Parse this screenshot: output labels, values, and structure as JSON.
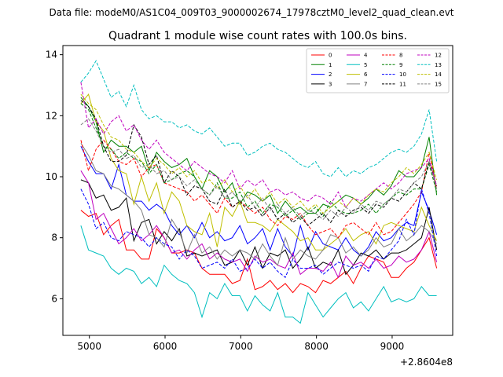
{
  "header": {
    "data_file": "Data file: modeM0/AS1C04_009T03_9000002674_17978cztM0_level2_quad_clean.evt"
  },
  "chart_data": {
    "type": "line",
    "title": "Quadrant 1 module wise count rates with 100.0s bins.",
    "xlabel": "",
    "ylabel": "",
    "x_offset_label": "+2.8604e8",
    "xlim": [
      4650,
      9800
    ],
    "ylim": [
      4.8,
      14.3
    ],
    "xticks": [
      5000,
      6000,
      7000,
      8000,
      9000
    ],
    "yticks": [
      6,
      8,
      10,
      12,
      14
    ],
    "legend": {
      "position": "top-right",
      "columns": 4
    },
    "x": [
      4888,
      4988,
      5088,
      5188,
      5288,
      5388,
      5488,
      5588,
      5688,
      5788,
      5888,
      5988,
      6088,
      6188,
      6288,
      6388,
      6488,
      6588,
      6688,
      6788,
      6888,
      6988,
      7088,
      7188,
      7288,
      7388,
      7488,
      7588,
      7688,
      7788,
      7888,
      7988,
      8088,
      8188,
      8288,
      8388,
      8488,
      8588,
      8688,
      8788,
      8888,
      8988,
      9088,
      9188,
      9288,
      9388,
      9488,
      9588
    ],
    "series": [
      {
        "name": "0",
        "color": "#ff0000",
        "style": "solid",
        "values": [
          8.9,
          8.7,
          8.8,
          8.1,
          8.4,
          8.6,
          7.6,
          7.6,
          7.3,
          7.3,
          8.3,
          8.0,
          7.5,
          7.5,
          7.6,
          7.5,
          7.0,
          6.8,
          6.8,
          6.8,
          6.5,
          6.6,
          7.3,
          6.3,
          6.4,
          6.6,
          6.3,
          6.5,
          6.2,
          6.5,
          6.4,
          6.2,
          6.6,
          6.5,
          6.7,
          6.9,
          6.5,
          7.0,
          7.4,
          7.3,
          7.2,
          6.7,
          6.7,
          7.0,
          7.2,
          7.6,
          8.0,
          7.0
        ]
      },
      {
        "name": "1",
        "color": "#008000",
        "style": "solid",
        "values": [
          12.6,
          12.3,
          11.8,
          10.8,
          11.2,
          11.0,
          11.0,
          10.8,
          11.0,
          10.2,
          10.8,
          10.5,
          10.3,
          10.4,
          10.6,
          10.0,
          9.6,
          10.2,
          10.0,
          9.5,
          9.8,
          9.1,
          9.5,
          9.4,
          9.2,
          9.4,
          8.8,
          9.2,
          8.9,
          9.0,
          8.8,
          8.8,
          9.1,
          9.0,
          9.2,
          9.4,
          9.3,
          9.1,
          9.3,
          9.6,
          9.4,
          9.7,
          10.2,
          10.0,
          10.0,
          10.3,
          11.3,
          9.4
        ]
      },
      {
        "name": "2",
        "color": "#0000ff",
        "style": "solid",
        "values": [
          11.0,
          10.5,
          10.1,
          10.1,
          9.6,
          10.4,
          9.4,
          9.2,
          9.2,
          8.9,
          9.1,
          8.9,
          8.4,
          8.1,
          8.4,
          8.0,
          8.5,
          8.0,
          8.2,
          7.9,
          8.0,
          8.4,
          7.8,
          8.0,
          8.3,
          7.6,
          8.3,
          7.7,
          7.4,
          8.4,
          7.6,
          8.2,
          7.8,
          7.7,
          7.6,
          8.0,
          7.6,
          7.4,
          7.7,
          8.2,
          7.9,
          8.0,
          8.3,
          8.5,
          8.4,
          9.5,
          8.9,
          8.1
        ]
      },
      {
        "name": "3",
        "color": "#000000",
        "style": "solid",
        "values": [
          9.9,
          9.8,
          9.3,
          9.4,
          8.9,
          9.0,
          9.3,
          7.9,
          8.5,
          8.6,
          7.8,
          8.2,
          7.9,
          8.3,
          7.4,
          7.5,
          7.4,
          7.5,
          7.6,
          7.1,
          7.2,
          7.6,
          7.1,
          7.7,
          7.0,
          7.5,
          7.4,
          7.6,
          7.0,
          7.3,
          7.7,
          7.0,
          7.2,
          7.1,
          7.6,
          6.8,
          7.1,
          7.5,
          7.4,
          7.6,
          7.3,
          7.5,
          7.5,
          7.6,
          7.8,
          8.0,
          9.0,
          7.6
        ]
      },
      {
        "name": "4",
        "color": "#bf00bf",
        "style": "solid",
        "values": [
          10.2,
          9.8,
          8.6,
          8.8,
          8.3,
          7.8,
          8.0,
          8.3,
          7.9,
          8.1,
          8.4,
          8.0,
          7.5,
          7.6,
          7.3,
          7.6,
          7.8,
          7.3,
          7.5,
          7.3,
          7.2,
          7.3,
          6.9,
          7.4,
          7.2,
          7.3,
          7.1,
          7.0,
          7.5,
          6.8,
          7.0,
          7.0,
          6.9,
          7.2,
          6.7,
          7.4,
          7.1,
          7.2,
          7.0,
          7.3,
          7.0,
          7.1,
          7.4,
          7.2,
          7.3,
          7.6,
          8.2,
          7.2
        ]
      },
      {
        "name": "5",
        "color": "#00bfbf",
        "style": "solid",
        "values": [
          8.4,
          7.6,
          7.5,
          7.4,
          7.0,
          6.8,
          7.0,
          6.9,
          6.5,
          6.7,
          6.4,
          7.1,
          6.8,
          6.6,
          6.5,
          6.2,
          5.4,
          6.2,
          6.0,
          6.5,
          6.1,
          6.1,
          5.6,
          6.1,
          5.8,
          5.6,
          6.2,
          5.4,
          5.4,
          5.2,
          6.2,
          5.8,
          5.4,
          5.7,
          6.0,
          6.2,
          5.7,
          5.9,
          5.6,
          6.0,
          6.4,
          5.9,
          6.0,
          5.9,
          6.0,
          6.4,
          6.1,
          6.1
        ]
      },
      {
        "name": "6",
        "color": "#bfbf00",
        "style": "solid",
        "values": [
          12.4,
          12.7,
          11.8,
          11.5,
          10.6,
          10.2,
          10.1,
          9.1,
          10.0,
          9.2,
          9.8,
          8.8,
          9.5,
          9.2,
          8.4,
          8.2,
          8.1,
          8.8,
          7.7,
          9.0,
          8.7,
          9.2,
          8.5,
          8.5,
          8.4,
          8.2,
          8.6,
          8.4,
          8.2,
          7.9,
          8.0,
          7.6,
          7.6,
          7.8,
          8.0,
          8.3,
          7.9,
          8.1,
          8.2,
          7.8,
          8.4,
          8.5,
          8.4,
          8.3,
          8.2,
          9.0,
          8.4,
          7.9
        ]
      },
      {
        "name": "7",
        "color": "#808080",
        "style": "solid",
        "values": [
          11.1,
          10.7,
          10.2,
          10.1,
          9.7,
          9.6,
          9.4,
          9.2,
          8.9,
          8.1,
          8.0,
          7.7,
          8.6,
          8.2,
          7.5,
          8.1,
          7.5,
          7.7,
          7.3,
          7.6,
          7.4,
          7.6,
          7.5,
          7.3,
          7.8,
          7.4,
          7.1,
          8.0,
          7.3,
          7.6,
          7.4,
          7.3,
          7.6,
          8.1,
          8.0,
          7.5,
          7.7,
          7.4,
          7.6,
          8.0,
          7.7,
          7.8,
          8.3,
          7.9,
          8.1,
          8.4,
          8.2,
          7.8
        ]
      },
      {
        "name": "8",
        "color": "#ff0000",
        "style": "dashed",
        "values": [
          11.2,
          10.2,
          10.9,
          11.2,
          10.9,
          10.5,
          10.4,
          10.6,
          10.0,
          10.3,
          10.4,
          9.8,
          9.7,
          9.6,
          9.5,
          9.2,
          9.4,
          9.1,
          8.8,
          9.3,
          9.0,
          9.2,
          9.0,
          8.8,
          9.0,
          8.6,
          8.4,
          8.7,
          8.6,
          8.8,
          8.4,
          8.1,
          8.2,
          8.3,
          8.0,
          8.4,
          8.5,
          8.3,
          8.1,
          8.5,
          8.1,
          8.2,
          8.5,
          8.8,
          9.1,
          9.5,
          10.8,
          9.6
        ]
      },
      {
        "name": "9",
        "color": "#008000",
        "style": "dashed",
        "values": [
          12.4,
          12.2,
          11.6,
          11.0,
          10.9,
          10.6,
          10.8,
          10.6,
          10.5,
          10.1,
          10.4,
          9.8,
          9.9,
          10.1,
          10.2,
          10.0,
          9.6,
          9.4,
          9.8,
          9.3,
          9.3,
          9.5,
          9.0,
          9.2,
          8.8,
          9.1,
          9.0,
          8.7,
          8.9,
          8.6,
          8.8,
          9.0,
          8.7,
          9.2,
          8.9,
          8.8,
          8.8,
          8.9,
          9.1,
          8.8,
          9.1,
          9.3,
          9.5,
          9.4,
          9.6,
          9.6,
          10.4,
          9.5
        ]
      },
      {
        "name": "10",
        "color": "#0000ff",
        "style": "dashed",
        "values": [
          9.6,
          9.1,
          8.3,
          8.5,
          8.0,
          7.9,
          8.2,
          8.1,
          8.0,
          7.7,
          8.0,
          7.8,
          7.7,
          7.3,
          7.6,
          7.4,
          7.0,
          7.1,
          7.2,
          7.0,
          7.3,
          6.9,
          7.0,
          7.3,
          7.0,
          7.2,
          6.9,
          6.7,
          7.3,
          7.0,
          7.0,
          7.1,
          6.8,
          7.0,
          7.2,
          7.1,
          7.0,
          7.1,
          6.9,
          7.4,
          7.3,
          7.6,
          7.9,
          8.6,
          8.1,
          9.6,
          8.8,
          7.4
        ]
      },
      {
        "name": "11",
        "color": "#000000",
        "style": "dashed",
        "values": [
          12.5,
          12.3,
          11.9,
          11.0,
          10.5,
          10.5,
          10.7,
          11.7,
          11.3,
          10.4,
          10.7,
          9.8,
          10.2,
          10.0,
          9.4,
          9.7,
          9.6,
          9.2,
          9.1,
          9.6,
          9.0,
          9.2,
          8.9,
          9.0,
          8.7,
          9.0,
          8.6,
          8.8,
          8.5,
          8.7,
          8.4,
          8.6,
          8.8,
          8.5,
          8.9,
          8.7,
          8.9,
          9.0,
          8.8,
          9.1,
          9.0,
          9.3,
          9.2,
          9.5,
          9.8,
          9.6,
          10.5,
          9.7
        ]
      },
      {
        "name": "12",
        "color": "#bf00bf",
        "style": "dashed",
        "values": [
          13.1,
          11.6,
          11.9,
          11.4,
          11.8,
          12.0,
          11.5,
          11.7,
          11.2,
          10.9,
          11.2,
          10.8,
          10.6,
          10.4,
          10.2,
          10.5,
          10.3,
          10.1,
          10.0,
          9.8,
          10.2,
          9.6,
          9.9,
          9.7,
          9.9,
          9.5,
          9.6,
          9.4,
          9.5,
          9.3,
          9.2,
          9.4,
          9.3,
          9.1,
          9.5,
          9.0,
          9.3,
          9.2,
          9.4,
          9.6,
          9.8,
          9.6,
          9.8,
          10.1,
          10.2,
          10.3,
          10.6,
          9.7
        ]
      },
      {
        "name": "13",
        "color": "#00bfbf",
        "style": "dashed",
        "values": [
          13.1,
          13.4,
          13.8,
          13.2,
          12.6,
          12.8,
          12.3,
          13.0,
          12.2,
          11.9,
          12.0,
          11.8,
          11.8,
          11.6,
          11.7,
          11.5,
          11.4,
          11.6,
          11.3,
          11.0,
          11.1,
          11.1,
          10.7,
          10.8,
          11.0,
          11.1,
          10.9,
          10.8,
          10.6,
          10.4,
          10.3,
          10.5,
          10.1,
          10.0,
          10.3,
          10.0,
          10.2,
          10.1,
          10.3,
          10.4,
          10.6,
          10.8,
          10.9,
          10.8,
          11.0,
          11.4,
          12.2,
          10.5
        ]
      },
      {
        "name": "14",
        "color": "#bfbf00",
        "style": "dashed",
        "values": [
          12.7,
          12.4,
          12.2,
          11.7,
          11.3,
          11.2,
          10.9,
          10.8,
          10.5,
          10.3,
          10.6,
          10.4,
          10.1,
          10.3,
          10.0,
          10.2,
          9.8,
          9.9,
          9.6,
          9.9,
          9.5,
          9.7,
          9.3,
          9.6,
          9.2,
          9.5,
          9.1,
          9.3,
          9.0,
          9.2,
          8.9,
          9.1,
          8.8,
          9.0,
          9.2,
          9.0,
          9.3,
          9.1,
          9.4,
          9.6,
          9.5,
          9.8,
          10.0,
          10.3,
          10.1,
          10.4,
          10.8,
          9.9
        ]
      },
      {
        "name": "15",
        "color": "#808080",
        "style": "dashed",
        "values": [
          11.7,
          11.9,
          11.5,
          11.0,
          10.8,
          10.9,
          10.6,
          10.7,
          10.3,
          10.4,
          10.1,
          10.2,
          9.9,
          10.0,
          9.7,
          9.9,
          9.6,
          9.4,
          9.7,
          9.3,
          9.5,
          9.2,
          9.4,
          9.0,
          9.3,
          8.9,
          9.1,
          8.8,
          9.0,
          8.7,
          8.9,
          8.8,
          8.6,
          8.9,
          8.7,
          9.0,
          8.8,
          9.1,
          8.9,
          9.2,
          9.1,
          9.3,
          9.6,
          9.5,
          9.8,
          10.0,
          10.5,
          9.6
        ]
      }
    ]
  }
}
